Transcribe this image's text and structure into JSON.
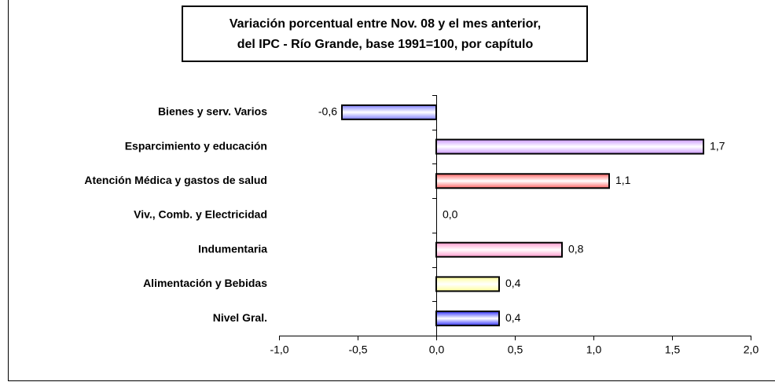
{
  "chart_data": {
    "type": "barh",
    "title": [
      "Variación porcentual entre Nov. 08 y el mes anterior,",
      "del IPC - Río Grande, base 1991=100, por capítulo"
    ],
    "categories": [
      "Bienes y serv. Varios",
      "Esparcimiento y educación",
      "Atención Médica y gastos de salud",
      "Viv., Comb. y Electricidad",
      "Indumentaria",
      "Alimentación y Bebidas",
      "Nivel Gral."
    ],
    "values": [
      -0.6,
      1.7,
      1.1,
      0.0,
      0.8,
      0.4,
      0.4
    ],
    "value_labels": [
      "-0,6",
      "1,7",
      "1,1",
      "0,0",
      "0,8",
      "0,4",
      "0,4"
    ],
    "colors": [
      "#7f7fff",
      "#cc99ff",
      "#ff6666",
      "#cccccc",
      "#ff99cc",
      "#ffff99",
      "#3333ff"
    ],
    "xlim": [
      -1.0,
      2.0
    ],
    "xticks": [
      {
        "value": -1.0,
        "label": "-1,0"
      },
      {
        "value": -0.5,
        "label": "-0,5"
      },
      {
        "value": 0.0,
        "label": "0,0"
      },
      {
        "value": 0.5,
        "label": "0,5"
      },
      {
        "value": 1.0,
        "label": "1,0"
      },
      {
        "value": 1.5,
        "label": "1,5"
      },
      {
        "value": 2.0,
        "label": "2,0"
      }
    ],
    "grid": false
  }
}
